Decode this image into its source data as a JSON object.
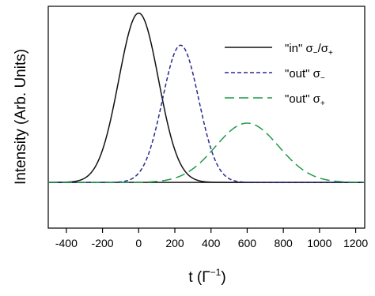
{
  "chart_data": {
    "type": "line",
    "title": "",
    "xlabel": "t (Γ",
    "xlabel_sup": "−1",
    "xlabel_close": ")",
    "ylabel": "Intensity (Arb. Units)",
    "xlim": [
      -500,
      1250
    ],
    "ylim": [
      -0.27,
      1.04
    ],
    "x_ticks": [
      -400,
      -200,
      0,
      200,
      400,
      600,
      800,
      1000,
      1200
    ],
    "y_ticks": [],
    "grid": false,
    "legend_position": "top-right",
    "baseline_y": 0,
    "series": [
      {
        "id": "in",
        "name_main": "\"in\" σ",
        "name_sub1": "−",
        "name_mid": "/σ",
        "name_sub2": "+",
        "color": "#111111",
        "dash": "solid",
        "shape": "gaussian",
        "center": 0,
        "sigma": 110,
        "amplitude": 1.0
      },
      {
        "id": "out-minus",
        "name_main": "\"out\" σ",
        "name_sub1": "−",
        "color": "#2b2b8c",
        "dash": "short-dash",
        "shape": "gaussian",
        "center": 232,
        "sigma": 100,
        "amplitude": 0.81
      },
      {
        "id": "out-plus",
        "name_main": "\"out\" σ",
        "name_sub1": "+",
        "color": "#1f9a4a",
        "dash": "long-dash",
        "shape": "gaussian",
        "center": 600,
        "sigma": 175,
        "amplitude": 0.35
      }
    ]
  }
}
